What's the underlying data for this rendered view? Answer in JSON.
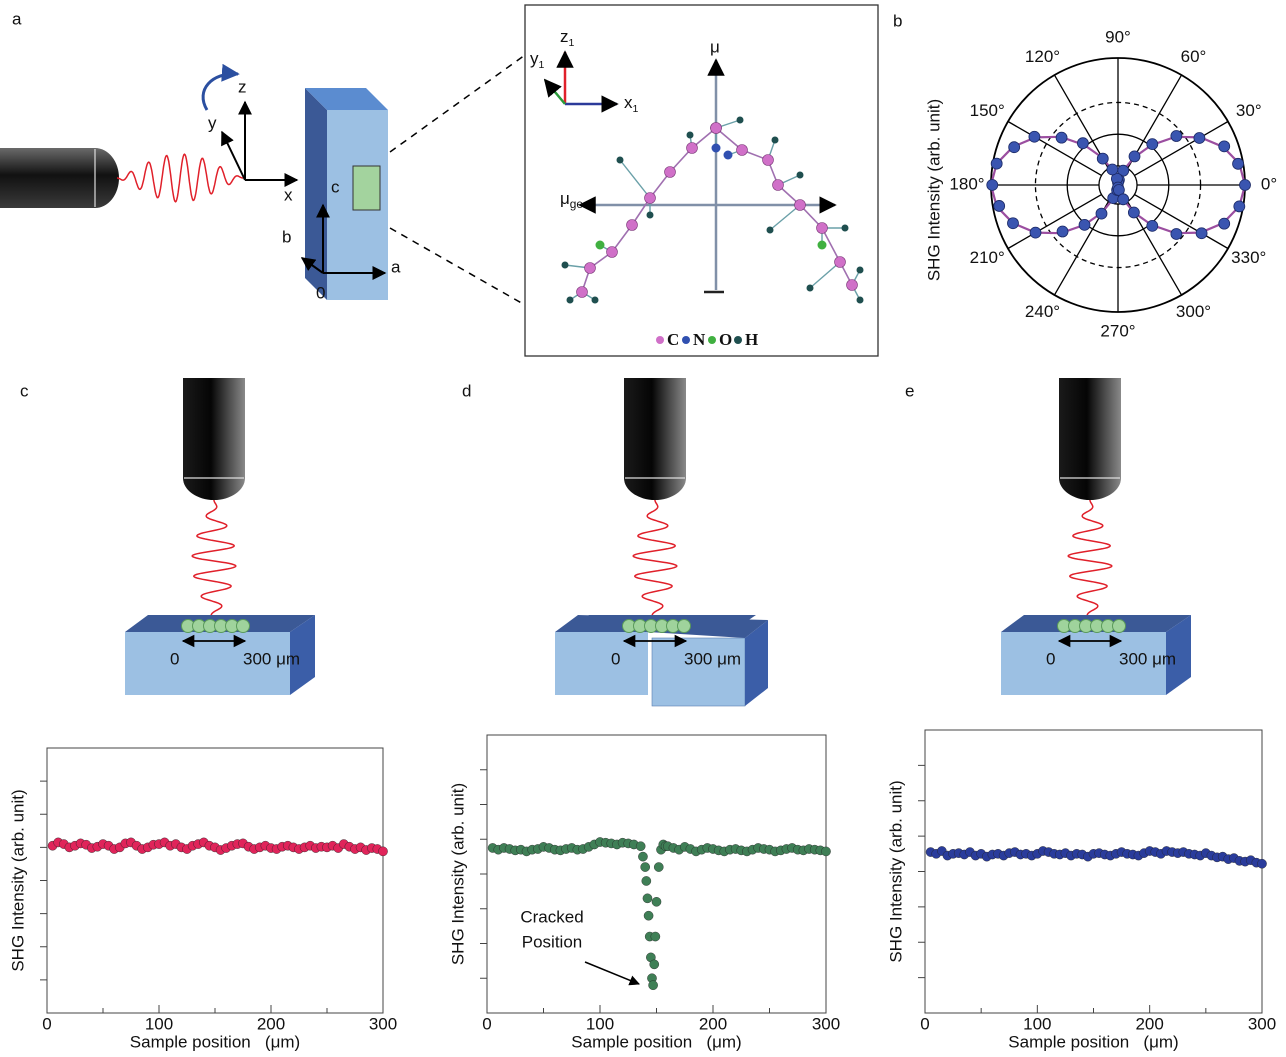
{
  "diagram": {
    "panel_label": "a",
    "lab_axes": [
      "z",
      "y",
      "x"
    ],
    "crystal_axes": [
      "c",
      "b",
      "a"
    ],
    "origin": "0",
    "inset": {
      "axes": [
        {
          "main": "z",
          "sub": "1"
        },
        {
          "main": "y",
          "sub": "1"
        },
        {
          "main": "x",
          "sub": "1"
        }
      ],
      "dipole": "μ",
      "ground_excited": {
        "main": "μ",
        "sub": "ge"
      },
      "legend": [
        "C",
        "N",
        "O",
        "H"
      ],
      "legend_colors": [
        "#d070c8",
        "#3050b0",
        "#40b040",
        "#1f4f4f"
      ]
    }
  },
  "chart_data": [
    {
      "type": "polar",
      "label": "b",
      "ylabel": "SHG Intensity (arb. unit)",
      "rlim": [
        0,
        1
      ],
      "rticks": [
        0.15,
        0.4,
        0.65,
        1
      ],
      "rgrid_dashed": [
        false,
        false,
        true,
        false
      ],
      "thetaticks": [
        {
          "value": 0,
          "label": "0°"
        },
        {
          "value": 30,
          "label": "30°"
        },
        {
          "value": 60,
          "label": "60°"
        },
        {
          "value": 90,
          "label": "90°"
        },
        {
          "value": 120,
          "label": "120°"
        },
        {
          "value": 150,
          "label": "150°"
        },
        {
          "value": 180,
          "label": "180°"
        },
        {
          "value": 210,
          "label": "210°"
        },
        {
          "value": 240,
          "label": "240°"
        },
        {
          "value": 270,
          "label": "270°"
        },
        {
          "value": 300,
          "label": "300°"
        },
        {
          "value": 330,
          "label": "330°"
        }
      ],
      "theta": [
        0,
        10,
        20,
        30,
        40,
        50,
        60,
        70,
        80,
        90,
        100,
        110,
        120,
        130,
        140,
        150,
        160,
        170,
        180,
        190,
        200,
        210,
        220,
        230,
        240,
        250,
        260,
        270,
        280,
        290,
        300,
        310,
        320,
        330,
        340,
        350
      ],
      "series": [
        {
          "color": "#3a55b0",
          "style": "points",
          "values": [
            1.0,
            0.96,
            0.89,
            0.74,
            0.6,
            0.42,
            0.26,
            0.12,
            0.04,
            0.02,
            0.05,
            0.13,
            0.24,
            0.43,
            0.58,
            0.76,
            0.87,
            0.97,
            0.99,
            0.95,
            0.88,
            0.75,
            0.57,
            0.41,
            0.26,
            0.11,
            0.04,
            0.02,
            0.04,
            0.12,
            0.25,
            0.42,
            0.6,
            0.76,
            0.89,
            0.97
          ]
        },
        {
          "color": "#9b4ea0",
          "style": "line",
          "values": [
            1,
            0.97,
            0.88,
            0.75,
            0.59,
            0.41,
            0.25,
            0.12,
            0.03,
            0,
            0.03,
            0.12,
            0.25,
            0.41,
            0.59,
            0.75,
            0.88,
            0.97,
            1,
            0.97,
            0.88,
            0.75,
            0.59,
            0.41,
            0.25,
            0.12,
            0.03,
            0,
            0.03,
            0.12,
            0.25,
            0.41,
            0.59,
            0.75,
            0.88,
            0.97
          ]
        }
      ]
    },
    {
      "type": "scatter",
      "label": "c",
      "schematic": {
        "start": "0",
        "end": "300 μm",
        "cracked": false
      },
      "xlabel": "Sample position   (μm)",
      "ylabel": "SHG Intensity (arb. unit)",
      "color": "#e0245a",
      "xlim": [
        0,
        300
      ],
      "xticks": [
        0,
        100,
        200,
        300
      ],
      "xminor": [
        50,
        150,
        250
      ],
      "ylim": [
        0,
        8
      ],
      "yticks": [
        1,
        2,
        3,
        4,
        5,
        6,
        7
      ],
      "x": [
        5,
        10,
        15,
        20,
        25,
        30,
        35,
        40,
        45,
        50,
        55,
        60,
        65,
        70,
        75,
        80,
        85,
        90,
        95,
        100,
        105,
        110,
        115,
        120,
        125,
        130,
        135,
        140,
        145,
        150,
        155,
        160,
        165,
        170,
        175,
        180,
        185,
        190,
        195,
        200,
        205,
        210,
        215,
        220,
        225,
        230,
        235,
        240,
        245,
        250,
        255,
        260,
        265,
        270,
        275,
        280,
        285,
        290,
        295,
        300
      ],
      "values": [
        5.05,
        5.15,
        5.1,
        5.0,
        5.05,
        5.12,
        5.08,
        4.98,
        5.02,
        5.1,
        5.05,
        4.95,
        5.0,
        5.12,
        5.15,
        5.05,
        4.95,
        5.0,
        5.08,
        5.1,
        5.15,
        5.05,
        5.1,
        5.0,
        4.95,
        5.05,
        5.1,
        5.15,
        5.05,
        5.0,
        4.92,
        4.98,
        5.05,
        5.1,
        5.12,
        5.02,
        4.95,
        5.0,
        5.05,
        4.98,
        4.95,
        5.02,
        5.05,
        5.0,
        4.95,
        5.0,
        5.05,
        4.98,
        5.02,
        5.0,
        5.05,
        4.98,
        5.1,
        5.02,
        4.95,
        5.0,
        4.92,
        4.98,
        4.95,
        4.88
      ]
    },
    {
      "type": "scatter",
      "label": "d",
      "schematic": {
        "start": "0",
        "end": "300 μm",
        "cracked": true
      },
      "xlabel": "Sample position   (μm)",
      "ylabel": "SHG Intensity (arb. unit)",
      "color": "#3f7f56",
      "annotation": [
        "Cracked",
        "Position"
      ],
      "xlim": [
        0,
        300
      ],
      "xticks": [
        0,
        100,
        200,
        300
      ],
      "xminor": [
        50,
        150,
        250
      ],
      "ylim": [
        0,
        8
      ],
      "yticks": [
        1,
        2,
        3,
        4,
        5,
        6,
        7
      ],
      "x": [
        5,
        10,
        15,
        20,
        25,
        30,
        35,
        40,
        45,
        50,
        55,
        60,
        65,
        70,
        75,
        80,
        85,
        90,
        95,
        100,
        105,
        110,
        115,
        120,
        125,
        130,
        136,
        138,
        140,
        141,
        142,
        143,
        144,
        145,
        146,
        147,
        148,
        149,
        150,
        152,
        154,
        156,
        158,
        160,
        165,
        170,
        175,
        180,
        185,
        190,
        195,
        200,
        205,
        210,
        215,
        220,
        225,
        230,
        235,
        240,
        245,
        250,
        255,
        260,
        265,
        270,
        275,
        280,
        285,
        290,
        295,
        300
      ],
      "values": [
        4.75,
        4.7,
        4.75,
        4.72,
        4.68,
        4.7,
        4.65,
        4.7,
        4.72,
        4.78,
        4.75,
        4.7,
        4.68,
        4.72,
        4.75,
        4.7,
        4.72,
        4.78,
        4.85,
        4.92,
        4.9,
        4.88,
        4.85,
        4.9,
        4.88,
        4.85,
        4.8,
        4.5,
        4.2,
        3.8,
        3.3,
        2.8,
        2.2,
        1.6,
        1.0,
        0.8,
        1.4,
        2.2,
        3.2,
        4.2,
        4.7,
        4.85,
        4.8,
        4.8,
        4.75,
        4.7,
        4.78,
        4.72,
        4.65,
        4.7,
        4.75,
        4.72,
        4.68,
        4.65,
        4.7,
        4.72,
        4.68,
        4.65,
        4.7,
        4.75,
        4.72,
        4.7,
        4.65,
        4.68,
        4.72,
        4.75,
        4.7,
        4.68,
        4.72,
        4.7,
        4.68,
        4.65
      ]
    },
    {
      "type": "scatter",
      "label": "e",
      "schematic": {
        "start": "0",
        "end": "300 μm",
        "cracked": false
      },
      "xlabel": "Sample position   (μm)",
      "ylabel": "SHG Intensity (arb. unit)",
      "color": "#2a3c9c",
      "xlim": [
        0,
        300
      ],
      "xticks": [
        0,
        100,
        200,
        300
      ],
      "xminor": [
        50,
        150,
        250
      ],
      "ylim": [
        0,
        8
      ],
      "yticks": [
        1,
        2,
        3,
        4,
        5,
        6,
        7
      ],
      "x": [
        5,
        10,
        15,
        20,
        25,
        30,
        35,
        40,
        45,
        50,
        55,
        60,
        65,
        70,
        75,
        80,
        85,
        90,
        95,
        100,
        105,
        110,
        115,
        120,
        125,
        130,
        135,
        140,
        145,
        150,
        155,
        160,
        165,
        170,
        175,
        180,
        185,
        190,
        195,
        200,
        205,
        210,
        215,
        220,
        225,
        230,
        235,
        240,
        245,
        250,
        255,
        260,
        265,
        270,
        275,
        280,
        285,
        290,
        295,
        300
      ],
      "values": [
        4.55,
        4.5,
        4.58,
        4.45,
        4.5,
        4.52,
        4.48,
        4.55,
        4.45,
        4.5,
        4.42,
        4.48,
        4.5,
        4.45,
        4.52,
        4.55,
        4.48,
        4.5,
        4.45,
        4.5,
        4.58,
        4.55,
        4.5,
        4.48,
        4.52,
        4.45,
        4.5,
        4.48,
        4.42,
        4.5,
        4.52,
        4.48,
        4.45,
        4.5,
        4.55,
        4.5,
        4.48,
        4.45,
        4.52,
        4.58,
        4.55,
        4.5,
        4.58,
        4.55,
        4.52,
        4.55,
        4.5,
        4.48,
        4.45,
        4.52,
        4.45,
        4.4,
        4.42,
        4.35,
        4.38,
        4.3,
        4.28,
        4.32,
        4.25,
        4.22
      ]
    }
  ]
}
